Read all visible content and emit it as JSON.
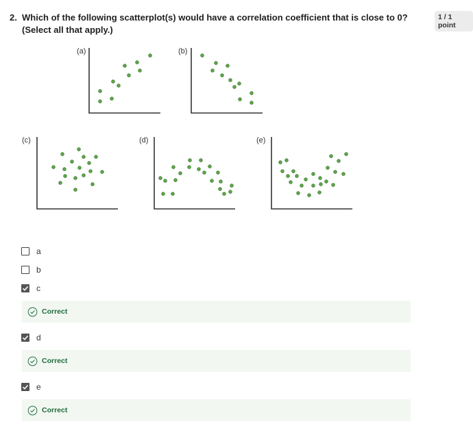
{
  "question": {
    "number": "2.",
    "text": "Which of the following scatterplot(s) would have a correlation coefficient that is close to 0? (Select all that apply.)",
    "points": "1 / 1 point"
  },
  "plots": [
    {
      "label": "(a)"
    },
    {
      "label": "(b)"
    },
    {
      "label": "(c)"
    },
    {
      "label": "(d)"
    },
    {
      "label": "(e)"
    }
  ],
  "options": [
    {
      "label": "a",
      "checked": false
    },
    {
      "label": "b",
      "checked": false
    },
    {
      "label": "c",
      "checked": true,
      "feedback": "Correct"
    },
    {
      "label": "d",
      "checked": true,
      "feedback": "Correct"
    },
    {
      "label": "e",
      "checked": true,
      "feedback": "Correct"
    }
  ],
  "colors": {
    "dot": "#5ea64a",
    "feedback_text": "#1e6b3b",
    "feedback_bg": "#f2f7f2"
  }
}
